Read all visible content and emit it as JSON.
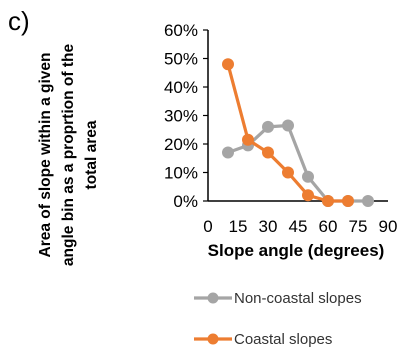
{
  "panel_label": "c)",
  "chart_data": {
    "type": "line",
    "title": "",
    "ylabel_lines": [
      "Area of slope within a given",
      "angle bin as a proprtion of the",
      "total area"
    ],
    "xlabel": "Slope angle (degrees)",
    "xlim": [
      0,
      90
    ],
    "ylim": [
      0,
      60
    ],
    "x_ticks": [
      0,
      15,
      30,
      45,
      60,
      75,
      90
    ],
    "x_tick_labels": [
      "0",
      "15",
      "30",
      "45",
      "60",
      "75",
      "90"
    ],
    "y_ticks": [
      0,
      10,
      20,
      30,
      40,
      50,
      60
    ],
    "y_tick_labels": [
      "0%",
      "10%",
      "20%",
      "30%",
      "40%",
      "50%",
      "60%"
    ],
    "legend_position": "bottom-right",
    "series": [
      {
        "name": "Non-coastal slopes",
        "color": "#a5a5a5",
        "x": [
          10,
          20,
          30,
          40,
          50,
          60,
          70,
          80
        ],
        "y": [
          17,
          19.5,
          26,
          26.5,
          8.5,
          0,
          0,
          0
        ]
      },
      {
        "name": "Coastal slopes",
        "color": "#ed7d31",
        "x": [
          10,
          20,
          30,
          40,
          50,
          60,
          70
        ],
        "y": [
          48,
          21.5,
          17,
          10,
          2,
          0,
          0
        ]
      }
    ]
  }
}
